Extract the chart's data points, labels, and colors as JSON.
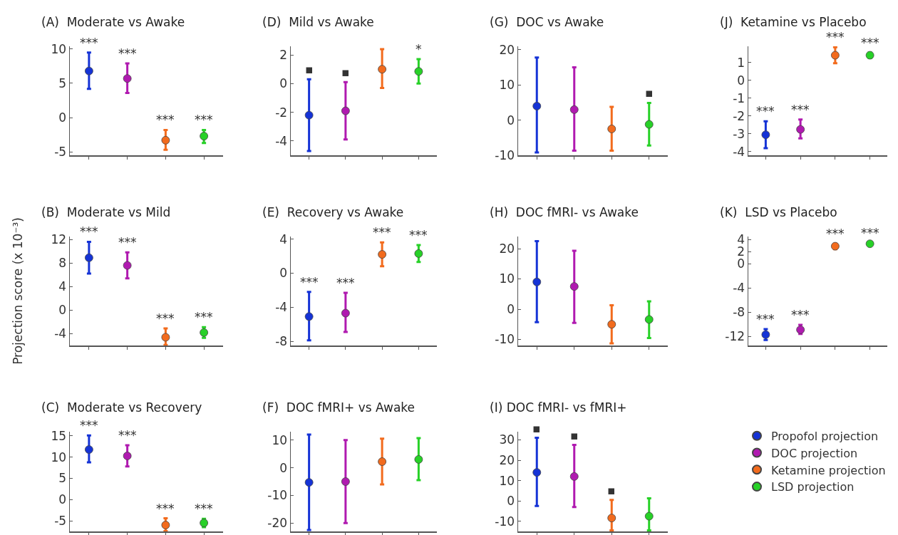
{
  "chart_data": [
    {
      "type": "scatter",
      "title": "(A)  Moderate vs Awake",
      "categories": [
        null,
        null,
        null,
        null
      ],
      "ylim": [
        -5.5,
        10.4
      ],
      "yticks": [
        -5,
        0,
        5,
        10
      ],
      "marker": "circle",
      "tick_labels": "y",
      "series": [
        {
          "color": "#1533d6",
          "values": [
            6.8,
            null,
            null,
            null
          ],
          "errors": [
            [
              4.2,
              9.5
            ],
            null,
            null,
            null
          ],
          "value_labels": [
            "***",
            null,
            null,
            null
          ]
        },
        {
          "color": "#b01ab0",
          "values": [
            null,
            5.7,
            null,
            null
          ],
          "errors": [
            null,
            [
              3.6,
              7.9
            ],
            null,
            null
          ],
          "value_labels": [
            null,
            "***",
            null,
            null
          ]
        },
        {
          "color": "#f26b1d",
          "values": [
            null,
            null,
            -3.3,
            null
          ],
          "errors": [
            null,
            null,
            [
              -4.7,
              -1.8
            ],
            null
          ],
          "value_labels": [
            null,
            null,
            "***",
            null
          ]
        },
        {
          "color": "#27d127",
          "values": [
            null,
            null,
            null,
            -2.7
          ],
          "errors": [
            null,
            null,
            null,
            [
              -3.7,
              -1.8
            ]
          ],
          "value_labels": [
            null,
            null,
            null,
            "***"
          ]
        }
      ]
    },
    {
      "type": "scatter",
      "title": "(B)  Moderate vs Mild",
      "ylabel": "Projection score (x 10⁻³)",
      "categories": [
        null,
        null,
        null,
        null
      ],
      "ylim": [
        -6,
        12.5
      ],
      "yticks": [
        -4,
        0,
        4,
        8,
        12
      ],
      "marker": "circle",
      "tick_labels": "y",
      "series": [
        {
          "color": "#1533d6",
          "values": [
            8.9,
            null,
            null,
            null
          ],
          "errors": [
            [
              6.2,
              11.6
            ],
            null,
            null,
            null
          ],
          "value_labels": [
            "***",
            null,
            null,
            null
          ]
        },
        {
          "color": "#b01ab0",
          "values": [
            null,
            7.6,
            null,
            null
          ],
          "errors": [
            null,
            [
              5.4,
              9.8
            ],
            null,
            null
          ],
          "value_labels": [
            null,
            "***",
            null,
            null
          ]
        },
        {
          "color": "#f26b1d",
          "values": [
            null,
            null,
            -4.6,
            null
          ],
          "errors": [
            null,
            null,
            [
              -5.9,
              -3.1
            ],
            null
          ],
          "value_labels": [
            null,
            null,
            "***",
            null
          ]
        },
        {
          "color": "#27d127",
          "values": [
            null,
            null,
            null,
            -3.8
          ],
          "errors": [
            null,
            null,
            null,
            [
              -4.7,
              -2.9
            ]
          ],
          "value_labels": [
            null,
            null,
            null,
            "***"
          ]
        }
      ]
    },
    {
      "type": "scatter",
      "title": "(C)  Moderate vs Recovery",
      "categories": [
        null,
        null,
        null,
        null
      ],
      "ylim": [
        -7.5,
        16
      ],
      "yticks": [
        -5,
        0,
        5,
        10,
        15
      ],
      "marker": "circle",
      "tick_labels": "y",
      "series": [
        {
          "color": "#1533d6",
          "values": [
            11.8,
            null,
            null,
            null
          ],
          "errors": [
            [
              8.8,
              15.1
            ],
            null,
            null,
            null
          ],
          "value_labels": [
            "***",
            null,
            null,
            null
          ]
        },
        {
          "color": "#b01ab0",
          "values": [
            null,
            10.3,
            null,
            null
          ],
          "errors": [
            null,
            [
              7.8,
              12.8
            ],
            null,
            null
          ],
          "value_labels": [
            null,
            "***",
            null,
            null
          ]
        },
        {
          "color": "#f26b1d",
          "values": [
            null,
            null,
            -6,
            null
          ],
          "errors": [
            null,
            null,
            [
              -7.4,
              -4.4
            ],
            null
          ],
          "value_labels": [
            null,
            null,
            "***",
            null
          ]
        },
        {
          "color": "#27d127",
          "values": [
            null,
            null,
            null,
            -5.5
          ],
          "errors": [
            null,
            null,
            null,
            [
              -6.5,
              -4.5
            ]
          ],
          "value_labels": [
            null,
            null,
            null,
            "***"
          ]
        }
      ]
    },
    {
      "type": "scatter",
      "title": "(D)  Mild vs Awake",
      "categories": [
        null,
        null,
        null,
        null
      ],
      "ylim": [
        -5,
        2.6
      ],
      "yticks": [
        -4,
        -2,
        0,
        2
      ],
      "marker": "circle",
      "tick_labels": "y",
      "series": [
        {
          "color": "#1533d6",
          "values": [
            -2.2,
            null,
            null,
            null
          ],
          "errors": [
            [
              -4.7,
              0.3
            ],
            null,
            null,
            null
          ],
          "value_labels": [
            "▪",
            null,
            null,
            null
          ]
        },
        {
          "color": "#b01ab0",
          "values": [
            null,
            -1.9,
            null,
            null
          ],
          "errors": [
            null,
            [
              -3.9,
              0.1
            ],
            null,
            null
          ],
          "value_labels": [
            null,
            "▪",
            null,
            null
          ]
        },
        {
          "color": "#f26b1d",
          "values": [
            null,
            null,
            1.0,
            null
          ],
          "errors": [
            null,
            null,
            [
              -0.3,
              2.4
            ],
            null
          ],
          "value_labels": [
            null,
            null,
            null,
            null
          ]
        },
        {
          "color": "#27d127",
          "values": [
            null,
            null,
            null,
            0.85
          ],
          "errors": [
            null,
            null,
            null,
            [
              0,
              1.7
            ]
          ],
          "value_labels": [
            null,
            null,
            null,
            "*"
          ]
        }
      ]
    },
    {
      "type": "scatter",
      "title": "(E)  Recovery vs Awake",
      "categories": [
        null,
        null,
        null,
        null
      ],
      "ylim": [
        -8.5,
        4.3
      ],
      "yticks": [
        -8,
        -4,
        0,
        4
      ],
      "marker": "circle",
      "tick_labels": "y",
      "series": [
        {
          "color": "#1533d6",
          "values": [
            -5.1,
            null,
            null,
            null
          ],
          "errors": [
            [
              -7.9,
              -2.2
            ],
            null,
            null,
            null
          ],
          "value_labels": [
            "***",
            null,
            null,
            null
          ]
        },
        {
          "color": "#b01ab0",
          "values": [
            null,
            -4.7,
            null,
            null
          ],
          "errors": [
            null,
            [
              -6.9,
              -2.3
            ],
            null,
            null
          ],
          "value_labels": [
            null,
            "***",
            null,
            null
          ]
        },
        {
          "color": "#f26b1d",
          "values": [
            null,
            null,
            2.2,
            null
          ],
          "errors": [
            null,
            null,
            [
              0.8,
              3.6
            ],
            null
          ],
          "value_labels": [
            null,
            null,
            "***",
            null
          ]
        },
        {
          "color": "#27d127",
          "values": [
            null,
            null,
            null,
            2.3
          ],
          "errors": [
            null,
            null,
            null,
            [
              1.3,
              3.3
            ]
          ],
          "value_labels": [
            null,
            null,
            null,
            "***"
          ]
        }
      ]
    },
    {
      "type": "scatter",
      "title": "(F)  DOC fMRI+ vs Awake",
      "categories": [
        null,
        null,
        null,
        null
      ],
      "ylim": [
        -23,
        13
      ],
      "yticks": [
        -20,
        -10,
        0,
        10
      ],
      "marker": "circle",
      "tick_labels": "y",
      "series": [
        {
          "color": "#1533d6",
          "values": [
            -5.3,
            null,
            null,
            null
          ],
          "errors": [
            [
              -22.5,
              12
            ],
            null,
            null,
            null
          ]
        },
        {
          "color": "#b01ab0",
          "values": [
            null,
            -5,
            null,
            null
          ],
          "errors": [
            null,
            [
              -20,
              10
            ],
            null,
            null
          ]
        },
        {
          "color": "#f26b1d",
          "values": [
            null,
            null,
            2.2,
            null
          ],
          "errors": [
            null,
            null,
            [
              -6,
              10.5
            ],
            null
          ]
        },
        {
          "color": "#27d127",
          "values": [
            null,
            null,
            null,
            3
          ],
          "errors": [
            null,
            null,
            null,
            [
              -4.5,
              10.7
            ]
          ]
        }
      ]
    },
    {
      "type": "scatter",
      "title": "(G)  DOC vs Awake",
      "categories": [
        null,
        null,
        null,
        null
      ],
      "ylim": [
        -10,
        21
      ],
      "yticks": [
        -10,
        0,
        10,
        20
      ],
      "marker": "circle",
      "tick_labels": "y",
      "series": [
        {
          "color": "#1533d6",
          "values": [
            4,
            null,
            null,
            null
          ],
          "errors": [
            [
              -9.2,
              17.8
            ],
            null,
            null,
            null
          ]
        },
        {
          "color": "#b01ab0",
          "values": [
            null,
            3,
            null,
            null
          ],
          "errors": [
            null,
            [
              -8.7,
              15
            ],
            null,
            null
          ]
        },
        {
          "color": "#f26b1d",
          "values": [
            null,
            null,
            -2.5,
            null
          ],
          "errors": [
            null,
            null,
            [
              -8.7,
              3.8
            ],
            null
          ]
        },
        {
          "color": "#27d127",
          "values": [
            null,
            null,
            null,
            -1.2
          ],
          "errors": [
            null,
            null,
            null,
            [
              -7.2,
              4.9
            ]
          ],
          "value_labels": [
            null,
            null,
            null,
            "▪"
          ]
        }
      ]
    },
    {
      "type": "scatter",
      "title": "(H)  DOC fMRI- vs Awake",
      "categories": [
        null,
        null,
        null,
        null
      ],
      "ylim": [
        -12,
        24
      ],
      "yticks": [
        -10,
        0,
        10,
        20
      ],
      "marker": "circle",
      "tick_labels": "y",
      "series": [
        {
          "color": "#1533d6",
          "values": [
            9,
            null,
            null,
            null
          ],
          "errors": [
            [
              -4.3,
              22.5
            ],
            null,
            null,
            null
          ]
        },
        {
          "color": "#b01ab0",
          "values": [
            null,
            7.5,
            null,
            null
          ],
          "errors": [
            null,
            [
              -4.5,
              19.3
            ],
            null,
            null
          ]
        },
        {
          "color": "#f26b1d",
          "values": [
            null,
            null,
            -5,
            null
          ],
          "errors": [
            null,
            null,
            [
              -11.3,
              1.3
            ],
            null
          ]
        },
        {
          "color": "#27d127",
          "values": [
            null,
            null,
            null,
            -3.4
          ],
          "errors": [
            null,
            null,
            null,
            [
              -9.5,
              2.6
            ]
          ]
        }
      ]
    },
    {
      "type": "scatter",
      "title": "(I) DOC fMRI- vs fMRI+",
      "categories": [
        null,
        null,
        null,
        null
      ],
      "ylim": [
        -15,
        34
      ],
      "yticks": [
        -10,
        0,
        10,
        20,
        30
      ],
      "marker": "circle",
      "tick_labels": "y",
      "legend": "right",
      "series": [
        {
          "name": "Propofol projection",
          "color": "#1533d6",
          "values": [
            14,
            null,
            null,
            null
          ],
          "errors": [
            [
              -2.5,
              31
            ],
            null,
            null,
            null
          ],
          "value_labels": [
            "▪",
            null,
            null,
            null
          ]
        },
        {
          "name": "DOC projection",
          "color": "#b01ab0",
          "values": [
            null,
            12,
            null,
            null
          ],
          "errors": [
            null,
            [
              -3,
              27.5
            ],
            null,
            null
          ],
          "value_labels": [
            null,
            "▪",
            null,
            null
          ]
        },
        {
          "name": "Ketamine projection",
          "color": "#f26b1d",
          "values": [
            null,
            null,
            -8.4,
            null
          ],
          "errors": [
            null,
            null,
            [
              -14.5,
              0.5
            ],
            null
          ],
          "value_labels": [
            null,
            null,
            "▪",
            null
          ]
        },
        {
          "name": "LSD projection",
          "color": "#27d127",
          "values": [
            null,
            null,
            null,
            -7.5
          ],
          "errors": [
            null,
            null,
            null,
            [
              -14.5,
              1.3
            ]
          ]
        }
      ]
    },
    {
      "type": "scatter",
      "title": "(J)  Ketamine vs Placebo",
      "categories": [
        null,
        null,
        null,
        null
      ],
      "ylim": [
        -4.2,
        1.9
      ],
      "yticks": [
        -4,
        -3,
        -2,
        -1,
        0,
        1
      ],
      "marker": "circle",
      "tick_labels": "y",
      "series": [
        {
          "color": "#1533d6",
          "values": [
            -3.05,
            null,
            null,
            null
          ],
          "errors": [
            [
              -3.8,
              -2.3
            ],
            null,
            null,
            null
          ],
          "value_labels": [
            "***",
            null,
            null,
            null
          ]
        },
        {
          "color": "#b01ab0",
          "values": [
            null,
            -2.75,
            null,
            null
          ],
          "errors": [
            null,
            [
              -3.25,
              -2.2
            ],
            null,
            null
          ],
          "value_labels": [
            null,
            "***",
            null,
            null
          ]
        },
        {
          "color": "#f26b1d",
          "values": [
            null,
            null,
            1.4,
            null
          ],
          "errors": [
            null,
            null,
            [
              0.95,
              1.85
            ],
            null
          ],
          "value_labels": [
            null,
            null,
            "***",
            null
          ]
        },
        {
          "color": "#27d127",
          "values": [
            null,
            null,
            null,
            1.4
          ],
          "errors": [
            null,
            null,
            null,
            [
              1.25,
              1.55
            ]
          ],
          "value_labels": [
            null,
            null,
            null,
            "***"
          ]
        }
      ]
    },
    {
      "type": "scatter",
      "title": "(K)  LSD vs Placebo",
      "categories": [
        null,
        null,
        null,
        null
      ],
      "ylim": [
        -13.5,
        4.5
      ],
      "yticks": [
        -12,
        -8,
        -4,
        0,
        2,
        4
      ],
      "marker": "circle",
      "tick_labels": "y",
      "series": [
        {
          "color": "#1533d6",
          "values": [
            -11.7,
            null,
            null,
            null
          ],
          "errors": [
            [
              -12.6,
              -10.8
            ],
            null,
            null,
            null
          ],
          "value_labels": [
            "***",
            null,
            null,
            null
          ]
        },
        {
          "color": "#b01ab0",
          "values": [
            null,
            -10.9,
            null,
            null
          ],
          "errors": [
            null,
            [
              -11.6,
              -10.1
            ],
            null,
            null
          ],
          "value_labels": [
            null,
            "***",
            null,
            null
          ]
        },
        {
          "color": "#f26b1d",
          "values": [
            null,
            null,
            2.9,
            null
          ],
          "errors": [
            null,
            null,
            [
              2.4,
              3.3
            ],
            null
          ],
          "value_labels": [
            null,
            null,
            "***",
            null
          ]
        },
        {
          "color": "#27d127",
          "values": [
            null,
            null,
            null,
            3.3
          ],
          "errors": [
            null,
            null,
            null,
            [
              3.1,
              3.5
            ]
          ],
          "value_labels": [
            null,
            null,
            null,
            "***"
          ]
        }
      ]
    }
  ]
}
